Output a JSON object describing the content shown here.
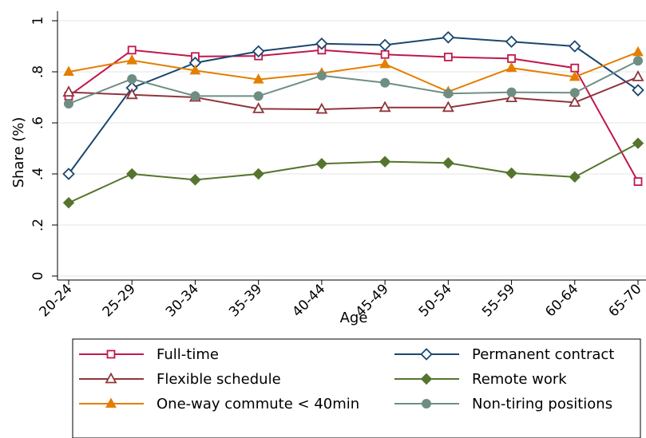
{
  "chart_data": {
    "type": "line",
    "xlabel": "Age",
    "ylabel": "Share (%)",
    "categories": [
      "20-24",
      "25-29",
      "30-34",
      "35-39",
      "40-44",
      "45-49",
      "50-54",
      "55-59",
      "60-64",
      "65-70"
    ],
    "ylim": [
      0,
      1
    ],
    "yticks": [
      {
        "value": 0,
        "label": "0"
      },
      {
        "value": 0.2,
        "label": ".2"
      },
      {
        "value": 0.4,
        "label": ".4"
      },
      {
        "value": 0.6,
        "label": ".6"
      },
      {
        "value": 0.8,
        "label": ".8"
      },
      {
        "value": 1,
        "label": "1"
      }
    ],
    "grid": "horizontal",
    "legend_position": "bottom",
    "series": [
      {
        "name": "Full-time",
        "color": "#c0184a",
        "marker": "hollow-square",
        "values": [
          0.705,
          0.885,
          0.86,
          0.862,
          0.885,
          0.868,
          0.858,
          0.852,
          0.815,
          0.37
        ]
      },
      {
        "name": "Permanent contract",
        "color": "#1a476f",
        "marker": "hollow-diamond",
        "values": [
          0.4,
          0.737,
          0.835,
          0.88,
          0.91,
          0.905,
          0.935,
          0.918,
          0.9,
          0.728
        ]
      },
      {
        "name": "Flexible schedule",
        "color": "#90353b",
        "marker": "hollow-triangle",
        "values": [
          0.72,
          0.71,
          0.7,
          0.655,
          0.653,
          0.66,
          0.66,
          0.698,
          0.68,
          0.78
        ]
      },
      {
        "name": "Remote work",
        "color": "#55752f",
        "marker": "filled-diamond",
        "values": [
          0.287,
          0.4,
          0.377,
          0.4,
          0.44,
          0.448,
          0.443,
          0.403,
          0.388,
          0.52
        ]
      },
      {
        "name": "One-way commute < 40min",
        "color": "#e37e00",
        "marker": "filled-triangle",
        "values": [
          0.8,
          0.845,
          0.805,
          0.77,
          0.795,
          0.83,
          0.722,
          0.815,
          0.78,
          0.877
        ]
      },
      {
        "name": "Non-tiring positions",
        "color": "#6e8e84",
        "marker": "filled-circle",
        "values": [
          0.675,
          0.772,
          0.705,
          0.705,
          0.785,
          0.757,
          0.715,
          0.72,
          0.718,
          0.843
        ]
      }
    ]
  }
}
